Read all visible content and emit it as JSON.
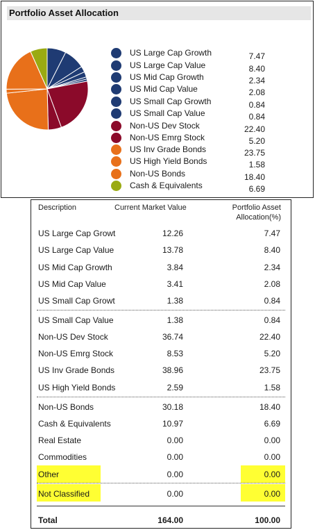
{
  "panel": {
    "title": "Portfolio Asset Allocation"
  },
  "chart_data": {
    "type": "pie",
    "title": "Portfolio Asset Allocation",
    "categories": [
      "US Large Cap Growth",
      "US Large Cap Value",
      "US Mid Cap Growth",
      "US Mid Cap Value",
      "US Small Cap Growth",
      "US Small Cap Value",
      "Non-US Dev Stock",
      "Non-US Emrg Stock",
      "US Inv Grade Bonds",
      "US High Yield Bonds",
      "Non-US Bonds",
      "Cash & Equivalents"
    ],
    "values": [
      7.47,
      8.4,
      2.34,
      2.08,
      0.84,
      0.84,
      22.4,
      5.2,
      23.75,
      1.58,
      18.4,
      6.69
    ],
    "value_labels": [
      "7.47",
      "8.40",
      "2.34",
      "2.08",
      "0.84",
      "0.84",
      "22.40",
      "5.20",
      "23.75",
      "1.58",
      "18.40",
      "6.69"
    ],
    "colors": [
      "#1f3b73",
      "#1f3b73",
      "#1f3b73",
      "#1f3b73",
      "#1f3b73",
      "#1f3b73",
      "#8b0a2a",
      "#8b0a2a",
      "#e8701a",
      "#e8701a",
      "#e8701a",
      "#9aaa12"
    ],
    "legend_position": "right"
  },
  "table": {
    "headers": {
      "description": "Description",
      "market_value": "Current Market Value",
      "allocation": "Portfolio Asset Allocation(%)"
    },
    "rows": [
      {
        "description": "US Large Cap Growt",
        "market_value": "12.26",
        "allocation": "7.47"
      },
      {
        "description": "US Large Cap Value",
        "market_value": "13.78",
        "allocation": "8.40"
      },
      {
        "description": "US Mid Cap Growth",
        "market_value": "3.84",
        "allocation": "2.34"
      },
      {
        "description": "US Mid Cap Value",
        "market_value": "3.41",
        "allocation": "2.08"
      },
      {
        "description": "US Small Cap Growt",
        "market_value": "1.38",
        "allocation": "0.84"
      },
      {
        "description": "US Small Cap Value",
        "market_value": "1.38",
        "allocation": "0.84"
      },
      {
        "description": "Non-US Dev Stock",
        "market_value": "36.74",
        "allocation": "22.40"
      },
      {
        "description": "Non-US Emrg Stock",
        "market_value": "8.53",
        "allocation": "5.20"
      },
      {
        "description": "US Inv Grade Bonds",
        "market_value": "38.96",
        "allocation": "23.75"
      },
      {
        "description": "US High Yield Bonds",
        "market_value": "2.59",
        "allocation": "1.58"
      },
      {
        "description": "Non-US Bonds",
        "market_value": "30.18",
        "allocation": "18.40"
      },
      {
        "description": "Cash & Equivalents",
        "market_value": "10.97",
        "allocation": "6.69"
      },
      {
        "description": "Real Estate",
        "market_value": "0.00",
        "allocation": "0.00"
      },
      {
        "description": "Commodities",
        "market_value": "0.00",
        "allocation": "0.00"
      },
      {
        "description": "Other",
        "market_value": "0.00",
        "allocation": "0.00"
      },
      {
        "description": "Not Classified",
        "market_value": "0.00",
        "allocation": "0.00"
      }
    ],
    "total": {
      "description": "Total",
      "market_value": "164.00",
      "allocation": "100.00"
    },
    "highlight_color": "#ffff33"
  }
}
